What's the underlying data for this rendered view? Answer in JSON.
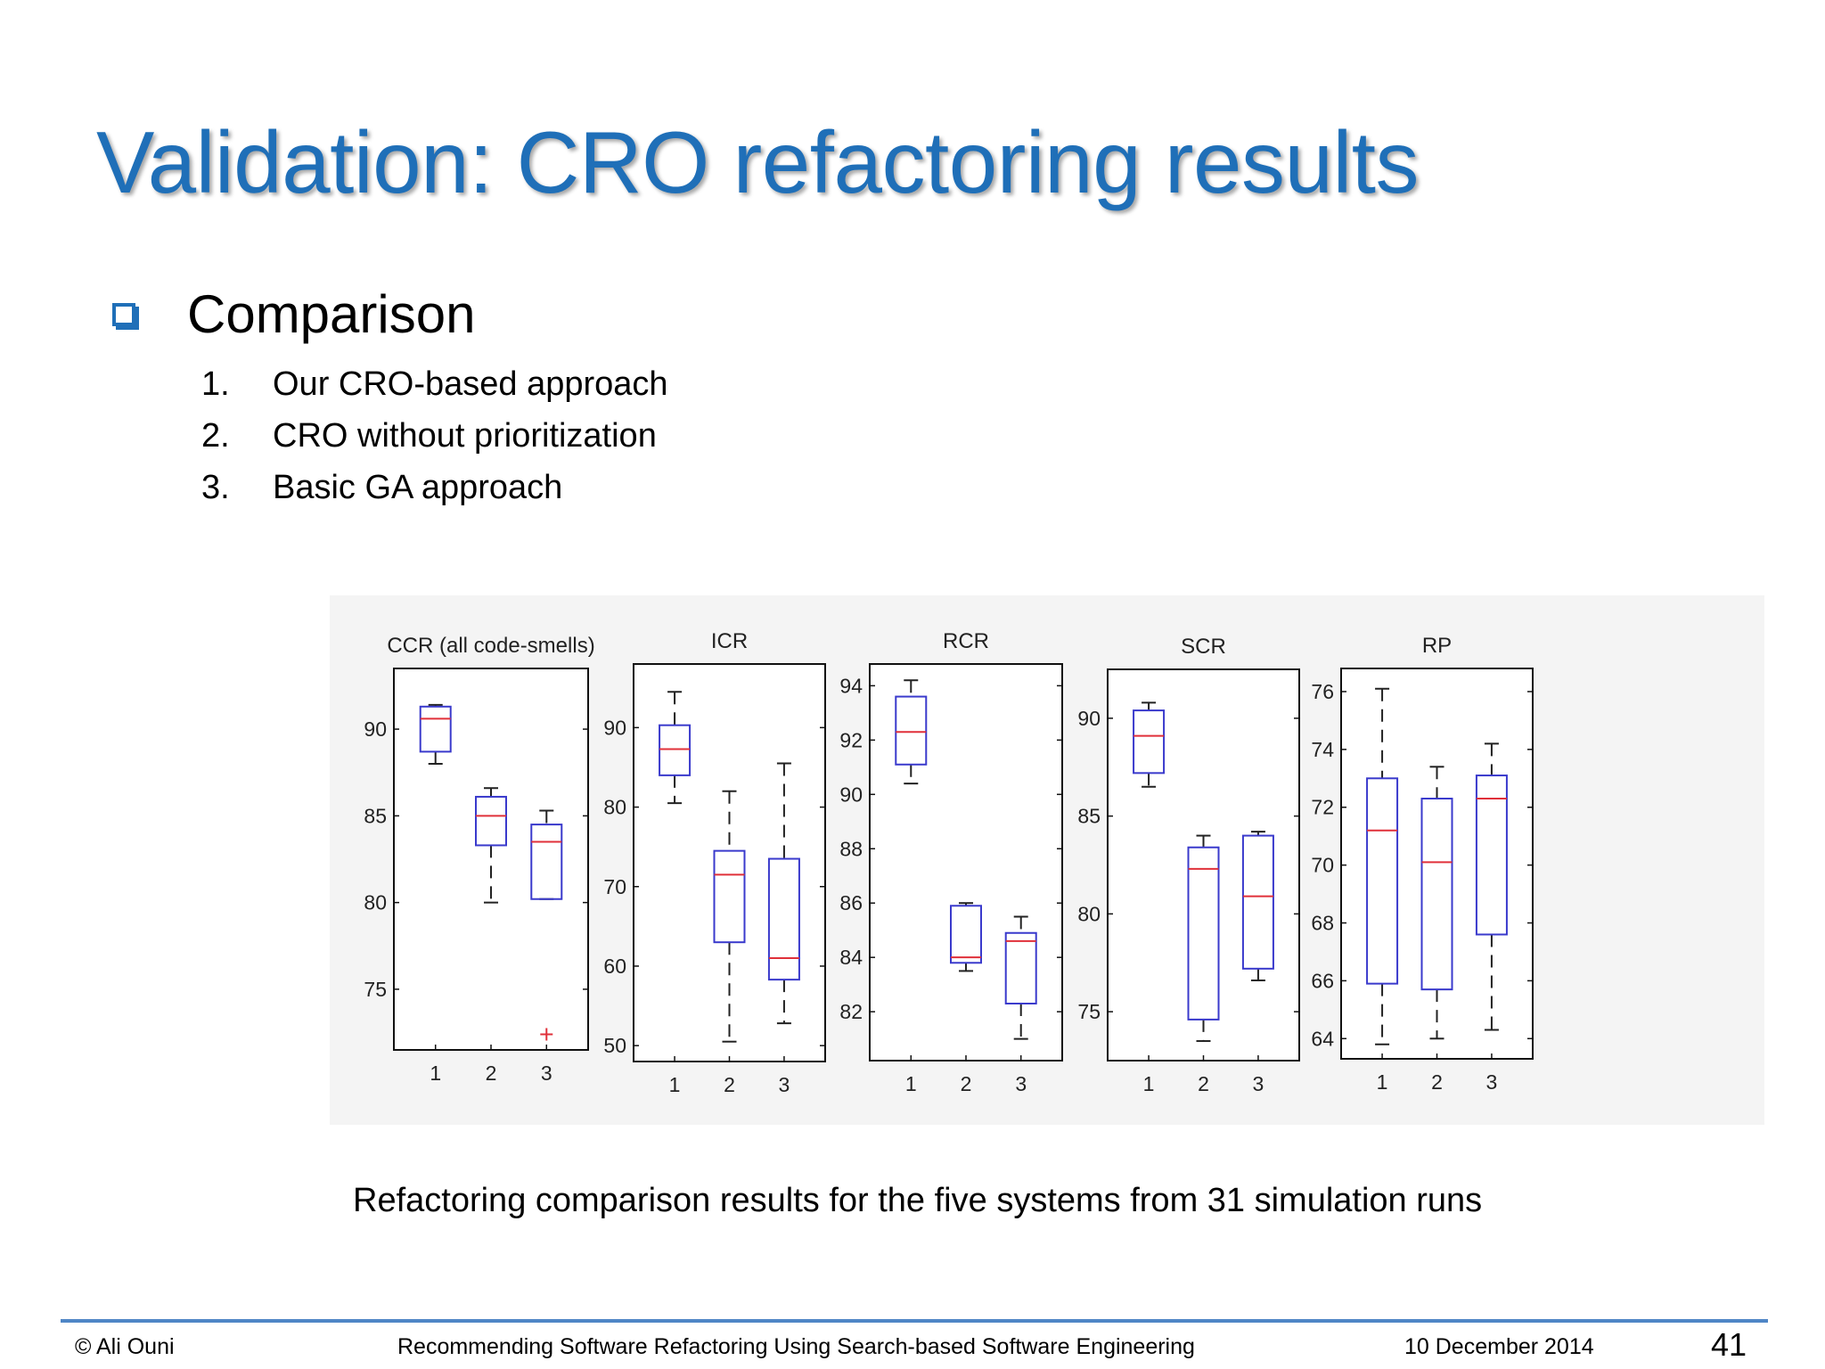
{
  "slide": {
    "title": "Validation: CRO refactoring results",
    "bullet": "Comparison",
    "items": [
      {
        "num": "1.",
        "text": "Our CRO-based approach"
      },
      {
        "num": "2.",
        "text": "CRO without prioritization"
      },
      {
        "num": "3.",
        "text": "Basic GA approach"
      }
    ],
    "caption": "Refactoring comparison results for the five systems from 31 simulation runs",
    "footer": {
      "author": "© Ali Ouni",
      "talk_title": "Recommending Software Refactoring Using Search-based Software Engineering",
      "date": "10 December 2014",
      "page": "41"
    }
  },
  "colors": {
    "title": "#1f6fb8",
    "box": "#3a3acc",
    "median": "#e0303a",
    "whisker": "#222222",
    "footer_line": "#4f86c6"
  },
  "chart_data": [
    {
      "type": "boxplot",
      "title": "CCR (all code-smells)",
      "categories": [
        "1",
        "2",
        "3"
      ],
      "ylim": [
        71.5,
        93.5
      ],
      "yticks": [
        75,
        80,
        85,
        90
      ],
      "boxes": [
        {
          "min": 88.0,
          "q1": 88.7,
          "median": 90.6,
          "q3": 91.3,
          "max": 91.4
        },
        {
          "min": 80.0,
          "q1": 83.3,
          "median": 85.0,
          "q3": 86.1,
          "max": 86.6
        },
        {
          "min": 80.2,
          "q1": 80.2,
          "median": 83.5,
          "q3": 84.5,
          "max": 85.3
        }
      ],
      "outliers": [
        {
          "category": "3",
          "value": 72.4
        }
      ]
    },
    {
      "type": "boxplot",
      "title": "ICR",
      "categories": [
        "1",
        "2",
        "3"
      ],
      "ylim": [
        48,
        98
      ],
      "yticks": [
        50,
        60,
        70,
        80,
        90
      ],
      "boxes": [
        {
          "min": 80.5,
          "q1": 84.0,
          "median": 87.3,
          "q3": 90.3,
          "max": 94.5
        },
        {
          "min": 50.5,
          "q1": 63.0,
          "median": 71.5,
          "q3": 74.5,
          "max": 82.0
        },
        {
          "min": 52.8,
          "q1": 58.3,
          "median": 61.0,
          "q3": 73.5,
          "max": 85.5
        }
      ],
      "outliers": []
    },
    {
      "type": "boxplot",
      "title": "RCR",
      "categories": [
        "1",
        "2",
        "3"
      ],
      "ylim": [
        80.2,
        94.8
      ],
      "yticks": [
        82,
        84,
        86,
        88,
        90,
        92,
        94
      ],
      "boxes": [
        {
          "min": 90.4,
          "q1": 91.1,
          "median": 92.3,
          "q3": 93.6,
          "max": 94.2
        },
        {
          "min": 83.5,
          "q1": 83.8,
          "median": 84.0,
          "q3": 85.9,
          "max": 86.0
        },
        {
          "min": 81.0,
          "q1": 82.3,
          "median": 84.6,
          "q3": 84.9,
          "max": 85.5
        }
      ],
      "outliers": []
    },
    {
      "type": "boxplot",
      "title": "SCR",
      "categories": [
        "1",
        "2",
        "3"
      ],
      "ylim": [
        72.5,
        92.5
      ],
      "yticks": [
        75,
        80,
        85,
        90
      ],
      "boxes": [
        {
          "min": 86.5,
          "q1": 87.2,
          "median": 89.1,
          "q3": 90.4,
          "max": 90.8
        },
        {
          "min": 73.5,
          "q1": 74.6,
          "median": 82.3,
          "q3": 83.4,
          "max": 84.0
        },
        {
          "min": 76.6,
          "q1": 77.2,
          "median": 80.9,
          "q3": 84.0,
          "max": 84.2
        }
      ],
      "outliers": []
    },
    {
      "type": "boxplot",
      "title": "RP",
      "categories": [
        "1",
        "2",
        "3"
      ],
      "ylim": [
        63.3,
        76.8
      ],
      "yticks": [
        64,
        66,
        68,
        70,
        72,
        74,
        76
      ],
      "boxes": [
        {
          "min": 63.8,
          "q1": 65.9,
          "median": 71.2,
          "q3": 73.0,
          "max": 76.1
        },
        {
          "min": 64.0,
          "q1": 65.7,
          "median": 70.1,
          "q3": 72.3,
          "max": 73.4
        },
        {
          "min": 64.3,
          "q1": 67.6,
          "median": 72.3,
          "q3": 73.1,
          "max": 74.2
        }
      ],
      "outliers": []
    }
  ]
}
